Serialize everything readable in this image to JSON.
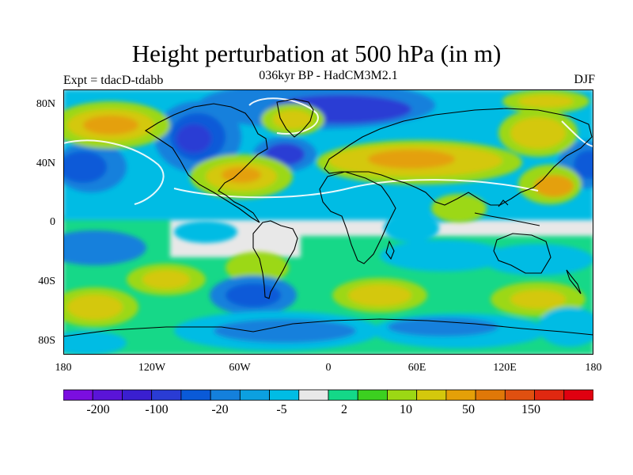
{
  "title": "Height perturbation at 500 hPa (in m)",
  "subtitle": "036kyr BP - HadCM3M2.1",
  "experiment": "Expt = tdacD-tdabb",
  "season": "DJF",
  "lat_labels": [
    "80N",
    "40N",
    "0",
    "40S",
    "80S"
  ],
  "lon_labels": [
    "180",
    "120W",
    "60W",
    "0",
    "60E",
    "120E",
    "180"
  ],
  "colorbar": {
    "labels": [
      "-200",
      "-100",
      "-20",
      "-5",
      "2",
      "10",
      "50",
      "150"
    ],
    "colors": [
      "#7b0ee0",
      "#5a14d8",
      "#3a1fd0",
      "#2a3cd4",
      "#0a5ad8",
      "#1480dc",
      "#0ca0e0",
      "#00bce4",
      "#e8e8e8",
      "#14d888",
      "#3cd020",
      "#9cd814",
      "#d4c80c",
      "#e4a008",
      "#e07808",
      "#e05010",
      "#e02810",
      "#e00010"
    ]
  }
}
